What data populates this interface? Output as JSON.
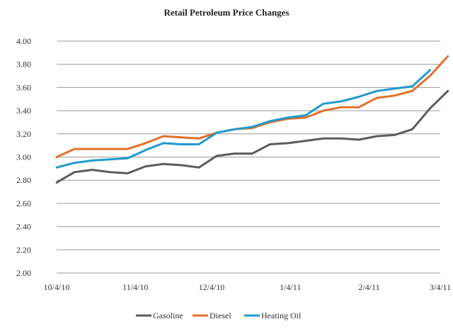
{
  "chart_data": {
    "type": "line",
    "title": "Retail Petroleum Price Changes",
    "xlabel": "",
    "ylabel": "",
    "ylim": [
      2.0,
      4.0
    ],
    "ytick_step": 0.2,
    "yticks": [
      "2.00",
      "2.20",
      "2.40",
      "2.60",
      "2.80",
      "3.00",
      "3.20",
      "3.40",
      "3.60",
      "3.80",
      "4.00"
    ],
    "x_dates": [
      "10/4/10",
      "10/11/10",
      "10/18/10",
      "10/25/10",
      "11/1/10",
      "11/8/10",
      "11/15/10",
      "11/22/10",
      "11/29/10",
      "12/6/10",
      "12/13/10",
      "12/20/10",
      "12/27/10",
      "1/3/11",
      "1/10/11",
      "1/17/11",
      "1/24/11",
      "1/31/11",
      "2/7/11",
      "2/14/11",
      "2/21/11",
      "2/28/11",
      "3/7/11"
    ],
    "xticks": [
      {
        "label": "10/4/10",
        "date": "10/4/10"
      },
      {
        "label": "11/4/10",
        "date": "11/4/10"
      },
      {
        "label": "12/4/10",
        "date": "12/4/10"
      },
      {
        "label": "1/4/11",
        "date": "1/4/11"
      },
      {
        "label": "2/4/11",
        "date": "2/4/11"
      },
      {
        "label": "3/4/11",
        "date": "3/4/11"
      }
    ],
    "grid": true,
    "legend_position": "bottom",
    "series": [
      {
        "name": "Gasoline",
        "color": "#5c5c5c",
        "values": [
          2.78,
          2.87,
          2.89,
          2.87,
          2.86,
          2.92,
          2.94,
          2.93,
          2.91,
          3.01,
          3.03,
          3.03,
          3.11,
          3.12,
          3.14,
          3.16,
          3.16,
          3.15,
          3.18,
          3.19,
          3.24,
          3.42,
          3.57
        ]
      },
      {
        "name": "Diesel",
        "color": "#e2702a",
        "values": [
          3.0,
          3.07,
          3.07,
          3.07,
          3.07,
          3.12,
          3.18,
          3.17,
          3.16,
          3.21,
          3.24,
          3.25,
          3.3,
          3.33,
          3.34,
          3.4,
          3.43,
          3.43,
          3.51,
          3.53,
          3.57,
          3.7,
          3.87
        ]
      },
      {
        "name": "Heating Oil",
        "color": "#1f9ad0",
        "values": [
          2.91,
          2.95,
          2.97,
          2.98,
          2.99,
          3.06,
          3.12,
          3.11,
          3.11,
          3.21,
          3.24,
          3.26,
          3.31,
          3.34,
          3.36,
          3.46,
          3.48,
          3.52,
          3.57,
          3.59,
          3.61,
          3.75,
          null
        ]
      }
    ]
  }
}
